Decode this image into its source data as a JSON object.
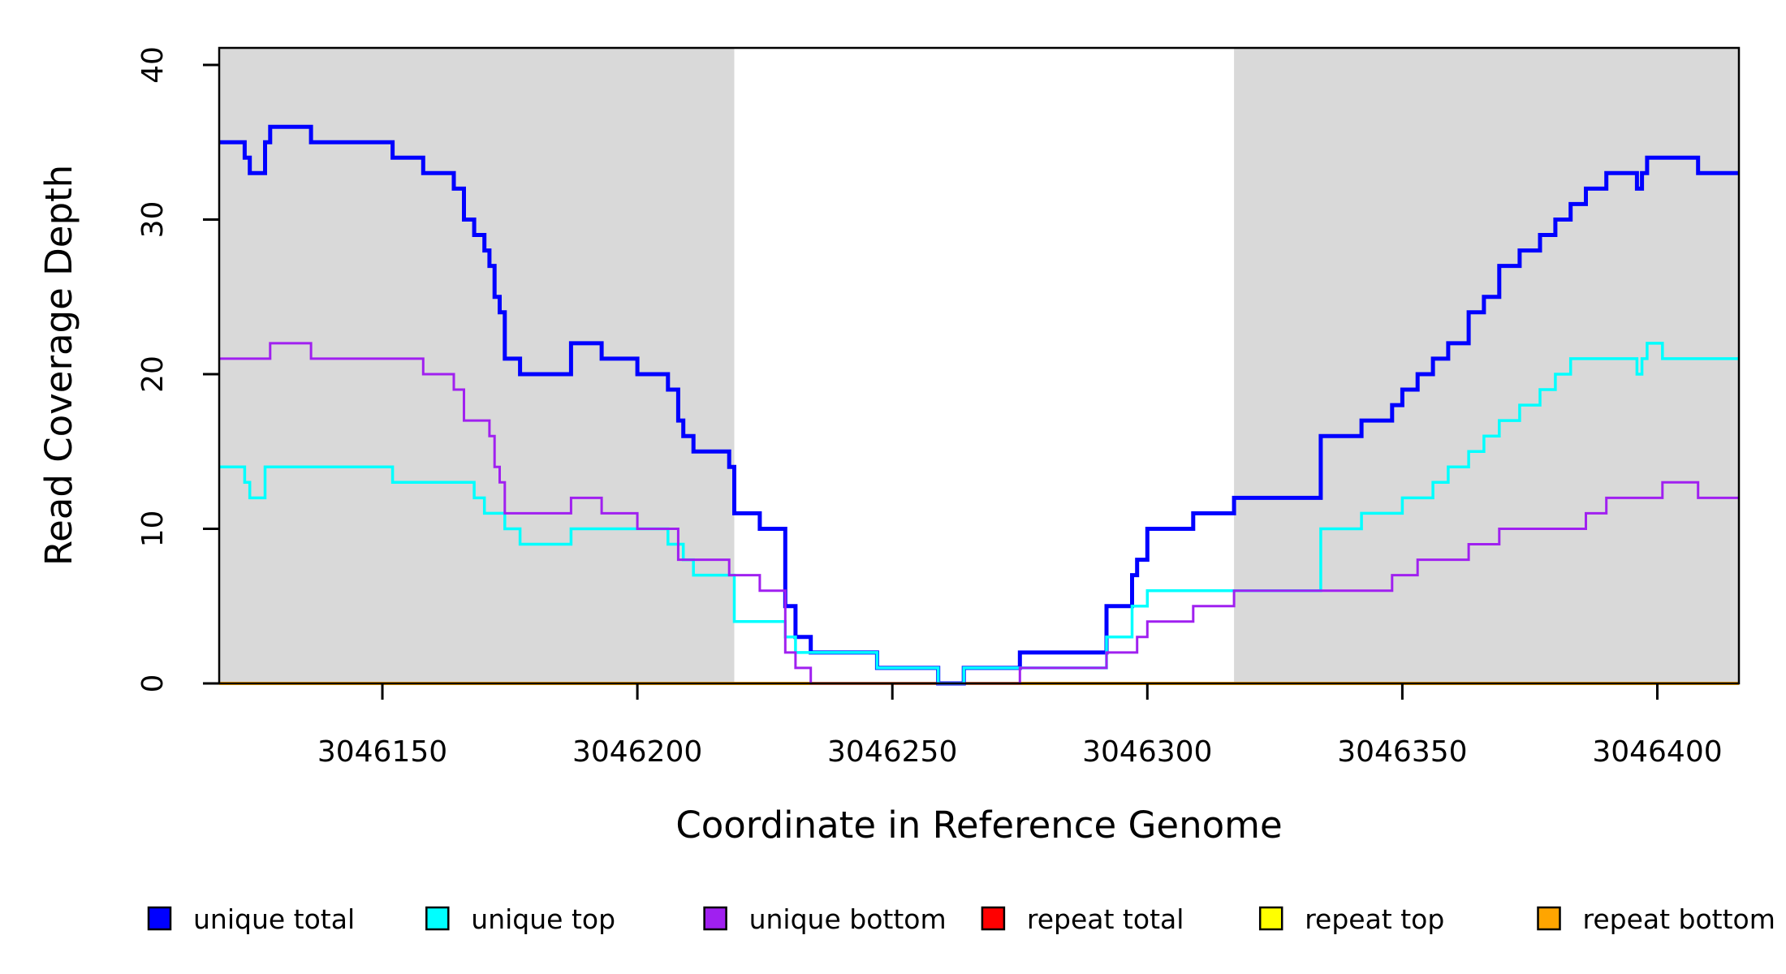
{
  "chart_data": {
    "type": "line",
    "subtype": "step",
    "xlabel": "Coordinate in Reference Genome",
    "ylabel": "Read Coverage Depth",
    "xlim": [
      3046118,
      3046416
    ],
    "ylim": [
      0,
      41.1
    ],
    "xend": 3046416,
    "xticks": [
      3046150,
      3046200,
      3046250,
      3046300,
      3046350,
      3046400
    ],
    "yticks": [
      0,
      10,
      20,
      30,
      40
    ],
    "grid": false,
    "plot_background": "#FFFFFF",
    "shaded_band_color": "#D9D9D9",
    "shaded_regions": [
      {
        "x0": 3046118,
        "x1": 3046219
      },
      {
        "x0": 3046317,
        "x1": 3046416
      }
    ],
    "series": [
      {
        "name": "repeat total",
        "color": "#FF0000",
        "width": 3,
        "points": [
          [
            3046118,
            0
          ]
        ]
      },
      {
        "name": "repeat top",
        "color": "#FFFF00",
        "width": 3,
        "points": [
          [
            3046118,
            0
          ]
        ]
      },
      {
        "name": "repeat bottom",
        "color": "#FFA500",
        "width": 4,
        "points": [
          [
            3046118,
            0
          ]
        ]
      },
      {
        "name": "unique total",
        "color": "#0000FF",
        "width": 5,
        "points": [
          [
            3046118,
            35
          ],
          [
            3046123,
            34
          ],
          [
            3046124,
            33
          ],
          [
            3046127,
            35
          ],
          [
            3046128,
            36
          ],
          [
            3046136,
            35
          ],
          [
            3046152,
            34
          ],
          [
            3046158,
            33
          ],
          [
            3046164,
            32
          ],
          [
            3046166,
            30
          ],
          [
            3046168,
            29
          ],
          [
            3046170,
            28
          ],
          [
            3046171,
            27
          ],
          [
            3046172,
            25
          ],
          [
            3046173,
            24
          ],
          [
            3046174,
            21
          ],
          [
            3046177,
            20
          ],
          [
            3046187,
            22
          ],
          [
            3046193,
            21
          ],
          [
            3046200,
            20
          ],
          [
            3046206,
            19
          ],
          [
            3046208,
            17
          ],
          [
            3046209,
            16
          ],
          [
            3046211,
            15
          ],
          [
            3046218,
            14
          ],
          [
            3046219,
            11
          ],
          [
            3046224,
            10
          ],
          [
            3046229,
            5
          ],
          [
            3046231,
            3
          ],
          [
            3046234,
            2
          ],
          [
            3046247,
            1
          ],
          [
            3046259,
            0
          ],
          [
            3046264,
            1
          ],
          [
            3046275,
            2
          ],
          [
            3046292,
            5
          ],
          [
            3046297,
            7
          ],
          [
            3046298,
            8
          ],
          [
            3046300,
            10
          ],
          [
            3046309,
            11
          ],
          [
            3046317,
            12
          ],
          [
            3046334,
            16
          ],
          [
            3046342,
            17
          ],
          [
            3046348,
            18
          ],
          [
            3046350,
            19
          ],
          [
            3046353,
            20
          ],
          [
            3046356,
            21
          ],
          [
            3046359,
            22
          ],
          [
            3046363,
            24
          ],
          [
            3046366,
            25
          ],
          [
            3046369,
            27
          ],
          [
            3046373,
            28
          ],
          [
            3046377,
            29
          ],
          [
            3046380,
            30
          ],
          [
            3046383,
            31
          ],
          [
            3046386,
            32
          ],
          [
            3046390,
            33
          ],
          [
            3046396,
            32
          ],
          [
            3046397,
            33
          ],
          [
            3046398,
            34
          ],
          [
            3046408,
            33
          ]
        ]
      },
      {
        "name": "unique top",
        "color": "#00FFFF",
        "width": 3.5,
        "points": [
          [
            3046118,
            14
          ],
          [
            3046123,
            13
          ],
          [
            3046124,
            12
          ],
          [
            3046127,
            14
          ],
          [
            3046152,
            13
          ],
          [
            3046168,
            12
          ],
          [
            3046170,
            11
          ],
          [
            3046174,
            10
          ],
          [
            3046177,
            9
          ],
          [
            3046187,
            10
          ],
          [
            3046206,
            9
          ],
          [
            3046209,
            8
          ],
          [
            3046211,
            7
          ],
          [
            3046219,
            4
          ],
          [
            3046229,
            3
          ],
          [
            3046231,
            2
          ],
          [
            3046247,
            1
          ],
          [
            3046259,
            0
          ],
          [
            3046264,
            1
          ],
          [
            3046292,
            3
          ],
          [
            3046297,
            5
          ],
          [
            3046300,
            6
          ],
          [
            3046334,
            10
          ],
          [
            3046342,
            11
          ],
          [
            3046350,
            12
          ],
          [
            3046356,
            13
          ],
          [
            3046359,
            14
          ],
          [
            3046363,
            15
          ],
          [
            3046366,
            16
          ],
          [
            3046369,
            17
          ],
          [
            3046373,
            18
          ],
          [
            3046377,
            19
          ],
          [
            3046380,
            20
          ],
          [
            3046383,
            21
          ],
          [
            3046396,
            20
          ],
          [
            3046397,
            21
          ],
          [
            3046398,
            22
          ],
          [
            3046401,
            21
          ]
        ]
      },
      {
        "name": "unique bottom",
        "color": "#A020F0",
        "width": 3,
        "points": [
          [
            3046118,
            21
          ],
          [
            3046128,
            22
          ],
          [
            3046136,
            21
          ],
          [
            3046158,
            20
          ],
          [
            3046164,
            19
          ],
          [
            3046166,
            17
          ],
          [
            3046171,
            16
          ],
          [
            3046172,
            14
          ],
          [
            3046173,
            13
          ],
          [
            3046174,
            11
          ],
          [
            3046187,
            12
          ],
          [
            3046193,
            11
          ],
          [
            3046200,
            10
          ],
          [
            3046208,
            8
          ],
          [
            3046218,
            7
          ],
          [
            3046224,
            6
          ],
          [
            3046229,
            2
          ],
          [
            3046231,
            1
          ],
          [
            3046234,
            0
          ],
          [
            3046275,
            1
          ],
          [
            3046292,
            2
          ],
          [
            3046298,
            3
          ],
          [
            3046300,
            4
          ],
          [
            3046309,
            5
          ],
          [
            3046317,
            6
          ],
          [
            3046348,
            7
          ],
          [
            3046353,
            8
          ],
          [
            3046363,
            9
          ],
          [
            3046369,
            10
          ],
          [
            3046386,
            11
          ],
          [
            3046390,
            12
          ],
          [
            3046401,
            13
          ],
          [
            3046408,
            12
          ]
        ]
      }
    ],
    "legend": {
      "position": "bottom",
      "items": [
        {
          "label": "unique total",
          "color": "#0000FF"
        },
        {
          "label": "unique top",
          "color": "#00FFFF"
        },
        {
          "label": "unique bottom",
          "color": "#A020F0"
        },
        {
          "label": "repeat total",
          "color": "#FF0000"
        },
        {
          "label": "repeat top",
          "color": "#FFFF00"
        },
        {
          "label": "repeat bottom",
          "color": "#FFA500"
        }
      ]
    }
  }
}
